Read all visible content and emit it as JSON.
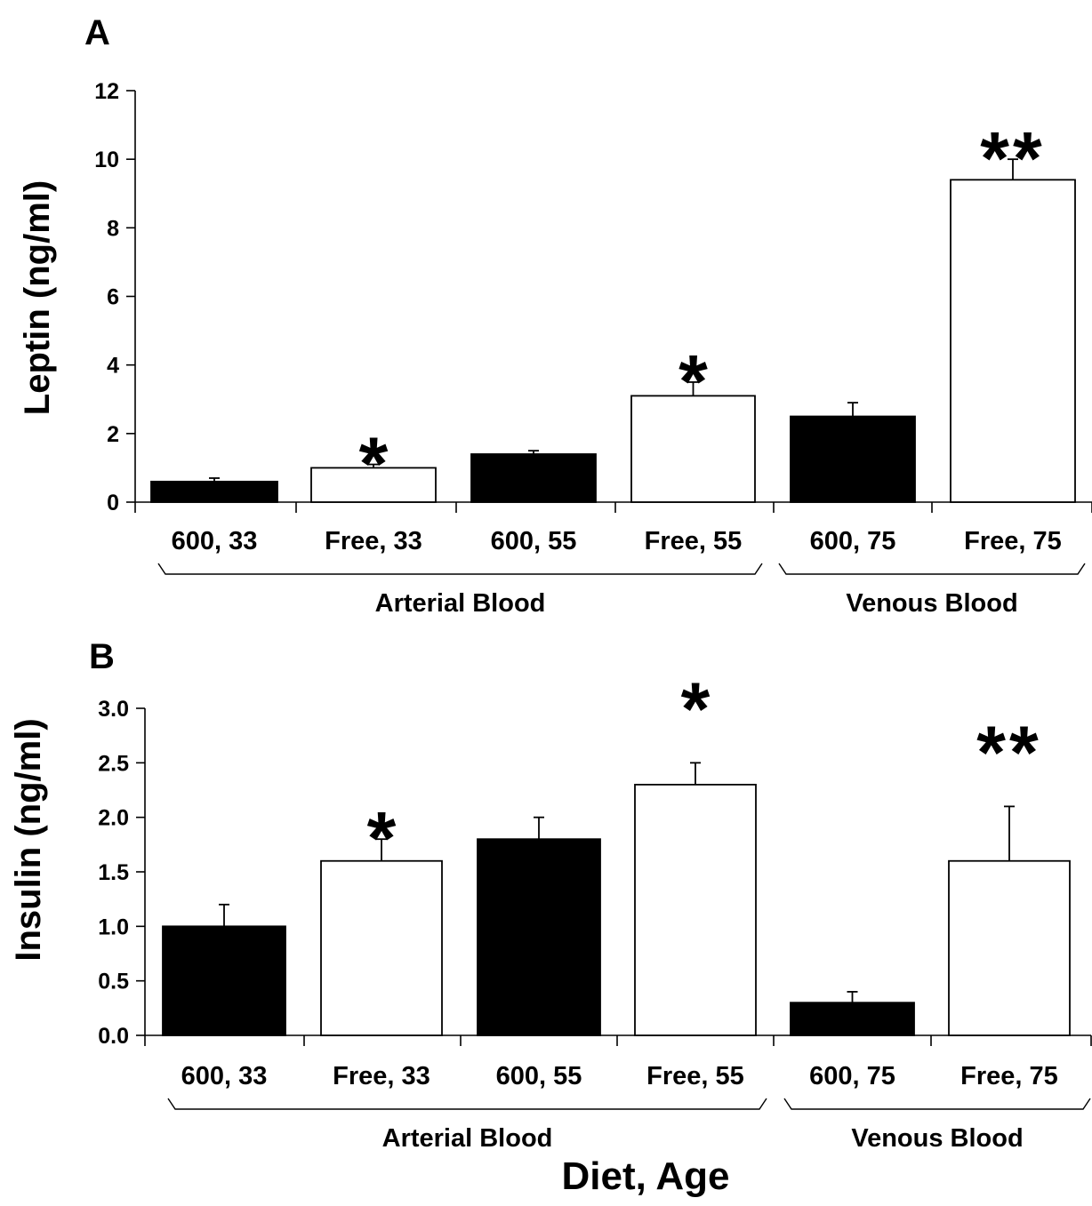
{
  "chart_data": [
    {
      "type": "bar",
      "panel": "A",
      "ylabel": "Leptin (ng/ml)",
      "ylim": [
        0,
        12
      ],
      "yticks": [
        "0",
        "2",
        "4",
        "6",
        "8",
        "10",
        "12"
      ],
      "categories": [
        "600, 33",
        "Free, 33",
        "600, 55",
        "Free, 55",
        "600, 75",
        "Free, 75"
      ],
      "values": [
        0.6,
        1.0,
        1.4,
        3.1,
        2.5,
        9.4
      ],
      "errors": [
        0.1,
        0.1,
        0.1,
        0.4,
        0.4,
        0.6
      ],
      "bar_fill": [
        "black",
        "white",
        "black",
        "white",
        "black",
        "white"
      ],
      "significance": [
        "",
        "*",
        "",
        "*",
        "",
        "**"
      ],
      "groups": [
        {
          "label": "Arterial Blood",
          "categories": [
            "600, 33",
            "Free, 33",
            "600, 55",
            "Free, 55"
          ]
        },
        {
          "label": "Venous Blood",
          "categories": [
            "600, 75",
            "Free, 75"
          ]
        }
      ]
    },
    {
      "type": "bar",
      "panel": "B",
      "ylabel": "Insulin (ng/ml)",
      "xlabel": "Diet, Age",
      "ylim": [
        0,
        3.0
      ],
      "yticks": [
        "0.0",
        "0.5",
        "1.0",
        "1.5",
        "2.0",
        "2.5",
        "3.0"
      ],
      "categories": [
        "600, 33",
        "Free, 33",
        "600, 55",
        "Free, 55",
        "600, 75",
        "Free, 75"
      ],
      "values": [
        1.0,
        1.6,
        1.8,
        2.3,
        0.3,
        1.6
      ],
      "errors": [
        0.2,
        0.2,
        0.2,
        0.2,
        0.1,
        0.5
      ],
      "bar_fill": [
        "black",
        "white",
        "black",
        "white",
        "black",
        "white"
      ],
      "significance": [
        "",
        "*",
        "",
        "*",
        "",
        "**"
      ],
      "groups": [
        {
          "label": "Arterial Blood",
          "categories": [
            "600, 33",
            "Free, 33",
            "600, 55",
            "Free, 55"
          ]
        },
        {
          "label": "Venous Blood",
          "categories": [
            "600, 75",
            "Free, 75"
          ]
        }
      ]
    }
  ],
  "colors": {
    "black_bar": "#000000",
    "white_bar": "#ffffff",
    "stroke": "#000000"
  }
}
